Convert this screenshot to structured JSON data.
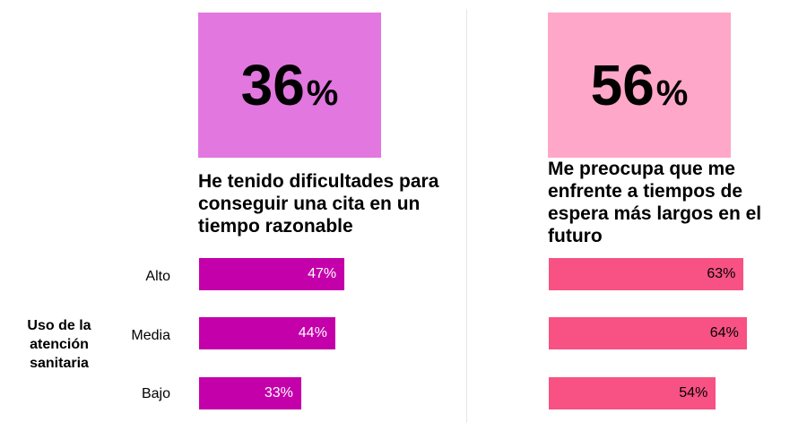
{
  "colors": {
    "left_big": "#e277e0",
    "right_big": "#ffa7c8",
    "left_bar": "#c400aa",
    "right_bar": "#f75283"
  },
  "left_panel": {
    "big_value": "36",
    "big_unit": "%",
    "caption": "He tenido dificultades para conseguir una cita en un tiempo razonable"
  },
  "right_panel": {
    "big_value": "56",
    "big_unit": "%",
    "caption": "Me preocupa que me enfrente a tiempos de espera más largos en el futuro"
  },
  "group_label": "Uso de la atención sanitaria",
  "chart_data": [
    {
      "type": "bar",
      "orientation": "horizontal",
      "title": "He tenido dificultades para conseguir una cita en un tiempo razonable",
      "categories": [
        "Alto",
        "Media",
        "Bajo"
      ],
      "values": [
        47,
        44,
        33
      ],
      "value_labels": [
        "47%",
        "44%",
        "33%"
      ],
      "xlim": [
        0,
        100
      ],
      "grid": false
    },
    {
      "type": "bar",
      "orientation": "horizontal",
      "title": "Me preocupa que me enfrente a tiempos de espera más largos en el futuro",
      "categories": [
        "Alto",
        "Media",
        "Bajo"
      ],
      "values": [
        63,
        64,
        54
      ],
      "value_labels": [
        "63%",
        "64%",
        "54%"
      ],
      "xlim": [
        0,
        100
      ],
      "grid": false
    }
  ]
}
